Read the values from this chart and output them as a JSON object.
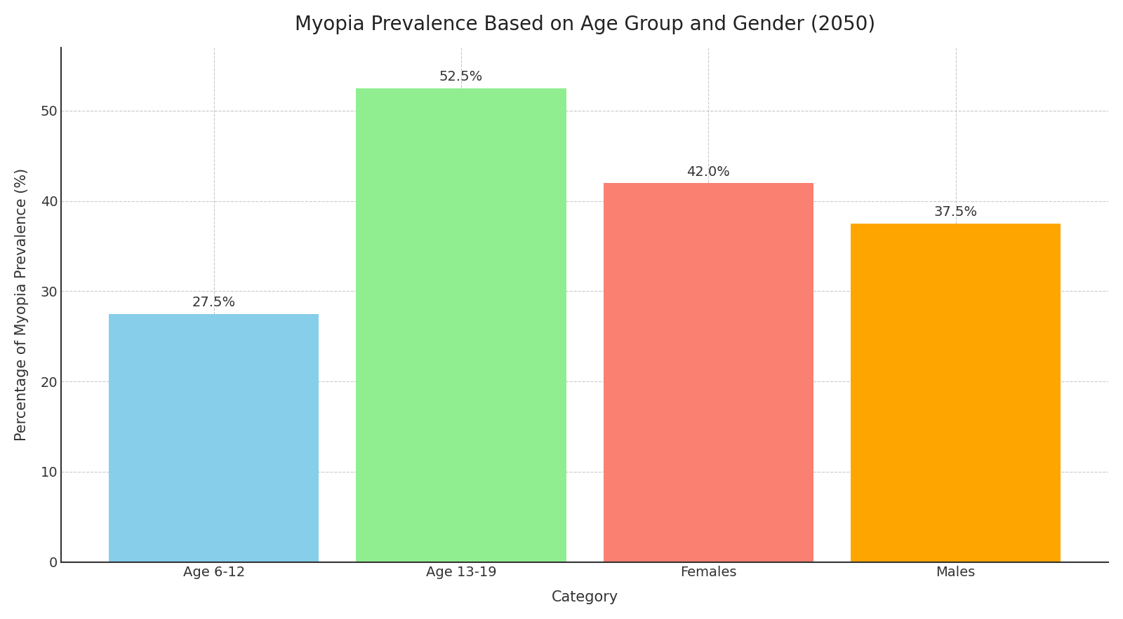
{
  "title": "Myopia Prevalence Based on Age Group and Gender (2050)",
  "categories": [
    "Age 6-12",
    "Age 13-19",
    "Females",
    "Males"
  ],
  "values": [
    27.5,
    52.5,
    42.0,
    37.5
  ],
  "bar_colors": [
    "#87CEEB",
    "#90EE90",
    "#FA8072",
    "#FFA500"
  ],
  "xlabel": "Category",
  "ylabel": "Percentage of Myopia Prevalence (%)",
  "ylim": [
    0,
    57
  ],
  "yticks": [
    0,
    10,
    20,
    30,
    40,
    50
  ],
  "title_fontsize": 20,
  "label_fontsize": 15,
  "tick_fontsize": 14,
  "annotation_fontsize": 14,
  "bar_width": 0.85,
  "grid_color": "#bbbbbb",
  "background_color": "#ffffff",
  "spine_color": "#333333"
}
